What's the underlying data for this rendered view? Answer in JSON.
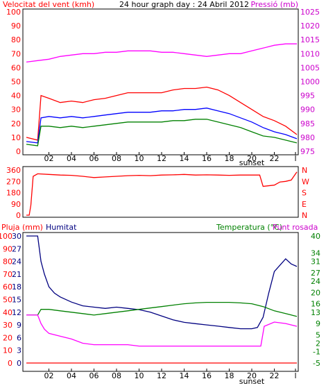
{
  "chart_data": [
    {
      "type": "line",
      "title": "24 hour graph day : 24 Abril 2012",
      "ylabel_left": "Velocitat del vent (kmh)",
      "ylabel_right": "Pressió (mb)",
      "x_ticks": [
        "02",
        "04",
        "06",
        "08",
        "10",
        "12",
        "14",
        "16",
        "18",
        "20",
        "22",
        "l"
      ],
      "x_annotation": "sunset",
      "ylim_left": [
        0,
        100
      ],
      "y_ticks_left": [
        "0",
        "10",
        "20",
        "30",
        "40",
        "50",
        "60",
        "70",
        "80",
        "90",
        "100"
      ],
      "ylim_right": [
        975,
        1025
      ],
      "y_ticks_right": [
        "975",
        "980",
        "985",
        "990",
        "995",
        "1000",
        "1005",
        "1010",
        "1015",
        "1020",
        "1025"
      ],
      "series": [
        {
          "color": "#ff00ff",
          "axis": "right",
          "x": [
            0,
            1,
            2,
            3,
            4,
            5,
            6,
            7,
            8,
            9,
            10,
            11,
            12,
            13,
            14,
            15,
            16,
            17,
            18,
            19,
            20,
            21,
            22,
            23,
            24
          ],
          "values": [
            1007,
            1007.5,
            1008,
            1009,
            1009.5,
            1010,
            1010,
            1010.5,
            1010.5,
            1011,
            1011,
            1011,
            1010.5,
            1010.5,
            1010,
            1009.5,
            1009,
            1009.5,
            1010,
            1010,
            1011,
            1012,
            1013,
            1013.5,
            1013.5
          ]
        },
        {
          "color": "#ff0000",
          "axis": "left",
          "x": [
            0,
            1,
            1.3,
            2,
            3,
            4,
            5,
            6,
            7,
            8,
            9,
            10,
            11,
            12,
            13,
            14,
            15,
            16,
            17,
            18,
            19,
            20,
            21,
            22,
            23,
            24
          ],
          "values": [
            10,
            8,
            40,
            38,
            35,
            36,
            35,
            37,
            38,
            40,
            42,
            42,
            42,
            42,
            44,
            45,
            45,
            46,
            44,
            40,
            35,
            30,
            25,
            22,
            18,
            12
          ]
        },
        {
          "color": "#0000ff",
          "axis": "left",
          "x": [
            0,
            1,
            1.3,
            2,
            3,
            4,
            5,
            6,
            7,
            8,
            9,
            10,
            11,
            12,
            13,
            14,
            15,
            16,
            17,
            18,
            19,
            20,
            21,
            22,
            23,
            24
          ],
          "values": [
            7,
            6,
            24,
            25,
            24,
            25,
            24,
            25,
            26,
            27,
            28,
            28,
            28,
            29,
            29,
            30,
            30,
            31,
            29,
            27,
            24,
            21,
            17,
            14,
            12,
            9
          ]
        },
        {
          "color": "#008000",
          "axis": "left",
          "x": [
            0,
            1,
            1.3,
            2,
            3,
            4,
            5,
            6,
            7,
            8,
            9,
            10,
            11,
            12,
            13,
            14,
            15,
            16,
            17,
            18,
            19,
            20,
            21,
            22,
            23,
            24
          ],
          "values": [
            5,
            4,
            18,
            18,
            17,
            18,
            17,
            18,
            19,
            20,
            21,
            21,
            21,
            21,
            22,
            22,
            23,
            23,
            21,
            19,
            17,
            14,
            11,
            10,
            8,
            6
          ]
        }
      ]
    },
    {
      "type": "line",
      "y_ticks_left": [
        "360",
        "270",
        "180",
        "90",
        "0"
      ],
      "ylim": [
        0,
        360
      ],
      "y_ticks_right": [
        "N",
        "W",
        "S",
        "E",
        "N"
      ],
      "series": [
        {
          "color": "#ff0000",
          "x": [
            0,
            0.25,
            0.4,
            0.6,
            1,
            2,
            3,
            4,
            5,
            6,
            7,
            8,
            9,
            10,
            11,
            12,
            13,
            14,
            15,
            16,
            17,
            18,
            19,
            20,
            20.7,
            21,
            22,
            22.5,
            23,
            23.5,
            24
          ],
          "values": [
            0,
            0,
            80,
            310,
            330,
            325,
            320,
            318,
            310,
            300,
            305,
            310,
            315,
            318,
            315,
            320,
            322,
            325,
            320,
            322,
            320,
            318,
            320,
            320,
            320,
            230,
            240,
            265,
            270,
            280,
            345
          ]
        }
      ]
    },
    {
      "type": "line",
      "ylabel_left": "Pluja (mm)",
      "ylabel_left2": "Humitat",
      "ylabel_right": "Temperatura (°C)",
      "ylabel_right2": "Punt rosada",
      "x_ticks": [
        "02",
        "04",
        "06",
        "08",
        "10",
        "12",
        "14",
        "16",
        "18",
        "20",
        "22",
        "l"
      ],
      "x_annotation": "sunset",
      "ylim_left": [
        0,
        100
      ],
      "y_ticks_left": [
        "0",
        "10",
        "20",
        "30",
        "40",
        "50",
        "60",
        "70",
        "80",
        "90",
        "100"
      ],
      "y_ticks_left_inner": [
        "0",
        "3",
        "6",
        "9",
        "12",
        "15",
        "18",
        "21",
        "24",
        "27",
        "30"
      ],
      "ylim_right": [
        -5,
        40
      ],
      "y_ticks_right": [
        "-5",
        "-1",
        "2",
        "5",
        "9",
        "13",
        "16",
        "20",
        "24",
        "27",
        "31",
        "34",
        "40"
      ],
      "series": [
        {
          "name": "Humitat",
          "color": "#000080",
          "axis": "left",
          "x": [
            0,
            1,
            1.3,
            1.6,
            2,
            2.5,
            3,
            4,
            5,
            6,
            7,
            8,
            9,
            10,
            11,
            12,
            13,
            14,
            15,
            16,
            17,
            18,
            19,
            20,
            20.5,
            21,
            21.5,
            22,
            23,
            23.5,
            24
          ],
          "values": [
            100,
            100,
            80,
            70,
            60,
            55,
            52,
            48,
            45,
            44,
            43,
            44,
            43,
            42,
            40,
            37,
            34,
            32,
            31,
            30,
            29,
            28,
            27,
            27,
            28,
            36,
            55,
            72,
            82,
            78,
            76
          ]
        },
        {
          "name": "Temperatura (°C)",
          "color": "#008000",
          "axis": "right",
          "x": [
            0,
            1,
            1.3,
            2,
            3,
            4,
            5,
            6,
            7,
            8,
            9,
            10,
            11,
            12,
            13,
            14,
            15,
            16,
            17,
            18,
            19,
            20,
            21,
            22,
            23,
            24
          ],
          "values": [
            12,
            12,
            14,
            14,
            13.5,
            13,
            12.5,
            12,
            12.5,
            13,
            13.5,
            14,
            14.5,
            15,
            15.5,
            16,
            16.3,
            16.5,
            16.5,
            16.5,
            16.3,
            16,
            15,
            13.5,
            12.5,
            11.5
          ]
        },
        {
          "name": "Punt rosada",
          "color": "#ff00ff",
          "axis": "right",
          "x": [
            0,
            1,
            1.3,
            1.6,
            2,
            3,
            4,
            5,
            6,
            7,
            8,
            9,
            10,
            11,
            12,
            13,
            14,
            15,
            16,
            17,
            18,
            19,
            20,
            20.8,
            21.1,
            22,
            23,
            23.5,
            24
          ],
          "values": [
            12,
            12,
            9,
            7,
            5.5,
            4.5,
            3.5,
            2,
            1.5,
            1.5,
            1.5,
            1.5,
            1,
            1,
            1,
            1,
            1,
            1,
            1,
            1,
            1,
            1,
            1,
            1,
            8,
            9.5,
            9,
            8.5,
            8
          ]
        },
        {
          "name": "Pluja (mm)",
          "color": "#ff0000",
          "axis": "left",
          "x": [
            0,
            24
          ],
          "values": [
            0,
            0
          ]
        }
      ]
    }
  ],
  "colors": {
    "axis_red": "#ff0000",
    "axis_magenta": "#cc00cc",
    "axis_navy": "#000080",
    "axis_green": "#008000",
    "title": "#000000"
  }
}
